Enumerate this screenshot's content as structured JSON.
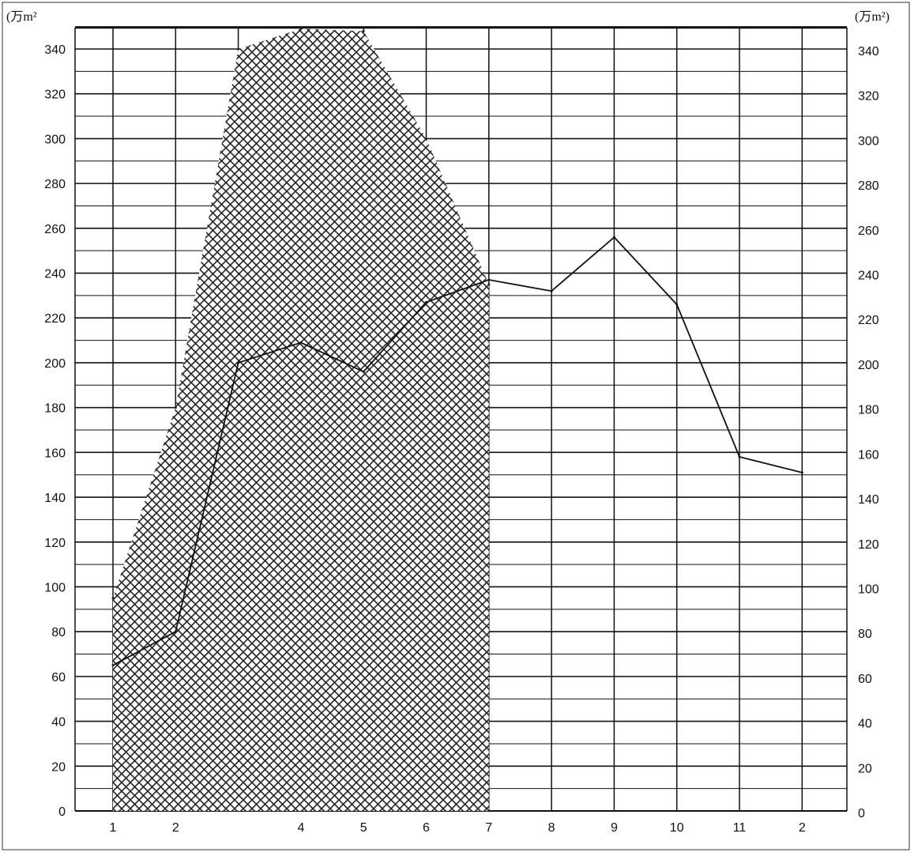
{
  "chart_data": {
    "type": "area",
    "units": {
      "left": "(万m²",
      "right": "(万m²)"
    },
    "x_tick_labels": [
      "1",
      "2",
      "",
      "4",
      "5",
      "6",
      "7",
      "8",
      "9",
      "10",
      "11",
      "2"
    ],
    "y_ticks": [
      0,
      20,
      40,
      60,
      80,
      100,
      120,
      140,
      160,
      180,
      200,
      220,
      240,
      260,
      280,
      300,
      320,
      340
    ],
    "ylim": [
      0,
      350
    ],
    "grid": true,
    "series": [
      {
        "style": "hatched-area",
        "color": "#222222",
        "points": [
          [
            1,
            95
          ],
          [
            2,
            180
          ],
          [
            3,
            340
          ],
          [
            4,
            349
          ],
          [
            5,
            348
          ],
          [
            6,
            300
          ],
          [
            7,
            235
          ]
        ]
      },
      {
        "style": "line",
        "color": "#111111",
        "points": [
          [
            1,
            65
          ],
          [
            2,
            80
          ],
          [
            3,
            200
          ],
          [
            4,
            209
          ],
          [
            5,
            196
          ],
          [
            6,
            227
          ],
          [
            7,
            237
          ],
          [
            8,
            232
          ],
          [
            9,
            256
          ],
          [
            10,
            226
          ],
          [
            11,
            158
          ],
          [
            12,
            151
          ]
        ]
      }
    ]
  }
}
